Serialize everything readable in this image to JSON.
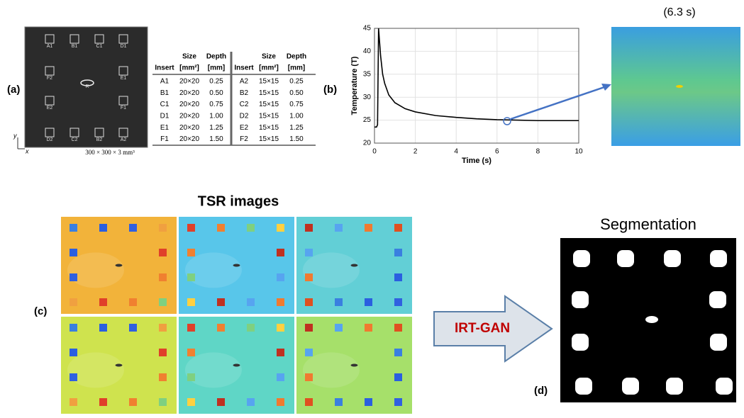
{
  "panel_a": {
    "label": "(a)",
    "plate_labels": [
      "A1",
      "B1",
      "C1",
      "D1",
      "F2",
      "R",
      "E1",
      "E2",
      "F1",
      "D2",
      "C2",
      "B2",
      "A2"
    ],
    "axis_y": "y",
    "axis_x": "x",
    "plate_size": "300 × 300 × 3 mm³"
  },
  "table": {
    "header": [
      [
        "Size",
        "[mm²]"
      ],
      [
        "Depth",
        "[mm]"
      ]
    ],
    "insert_header": "Insert",
    "rows": [
      [
        "A1",
        "20×20",
        "0.25",
        "A2",
        "15×15",
        "0.25"
      ],
      [
        "B1",
        "20×20",
        "0.50",
        "B2",
        "15×15",
        "0.50"
      ],
      [
        "C1",
        "20×20",
        "0.75",
        "C2",
        "15×15",
        "0.75"
      ],
      [
        "D1",
        "20×20",
        "1.00",
        "D2",
        "15×15",
        "1.00"
      ],
      [
        "E1",
        "20×20",
        "1.25",
        "E2",
        "15×15",
        "1.25"
      ],
      [
        "F1",
        "20×20",
        "1.50",
        "F2",
        "15×15",
        "1.50"
      ]
    ]
  },
  "panel_b": {
    "label": "(b)",
    "thumbnail_time": "(6.3 s)"
  },
  "chart_data": {
    "type": "line",
    "xlabel": "Time (s)",
    "ylabel": "Temperature (T)",
    "x": [
      0,
      0.1,
      0.15,
      0.2,
      0.25,
      0.3,
      0.4,
      0.5,
      0.7,
      1,
      1.5,
      2,
      3,
      4,
      5,
      6,
      7,
      8,
      9,
      10
    ],
    "values": [
      23.5,
      23.5,
      24,
      45,
      42,
      39,
      35,
      33,
      30.5,
      28.8,
      27.5,
      26.8,
      26,
      25.6,
      25.3,
      25.1,
      25,
      24.9,
      24.9,
      24.9
    ],
    "color": "#000000",
    "xlim": [
      0,
      10
    ],
    "ylim": [
      20,
      45
    ],
    "xticks": [
      0,
      2,
      4,
      6,
      8,
      10
    ],
    "yticks": [
      20,
      25,
      30,
      35,
      40,
      45
    ],
    "grid": true
  },
  "panel_c": {
    "label": "(c)",
    "title": "TSR images"
  },
  "gan_label": "IRT-GAN",
  "panel_d": {
    "label": "(d)",
    "title": "Segmentation"
  }
}
